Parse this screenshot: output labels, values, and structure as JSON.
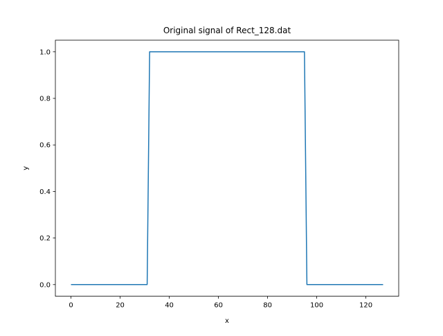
{
  "chart_data": {
    "type": "line",
    "title": "Original signal of Rect_128.dat",
    "xlabel": "x",
    "ylabel": "y",
    "xlim": [
      -6.35,
      133.35
    ],
    "ylim": [
      -0.05,
      1.05
    ],
    "xticks": [
      0,
      20,
      40,
      60,
      80,
      100,
      120
    ],
    "xtick_labels": [
      "0",
      "20",
      "40",
      "60",
      "80",
      "100",
      "120"
    ],
    "yticks": [
      0.0,
      0.2,
      0.4,
      0.6,
      0.8,
      1.0
    ],
    "ytick_labels": [
      "0.0",
      "0.2",
      "0.4",
      "0.6",
      "0.8",
      "1.0"
    ],
    "grid": false,
    "series": [
      {
        "color": "#1f77b4",
        "points": [
          [
            0,
            0
          ],
          [
            31,
            0
          ],
          [
            32,
            1
          ],
          [
            95,
            1
          ],
          [
            96,
            0
          ],
          [
            127,
            0
          ]
        ]
      }
    ]
  }
}
